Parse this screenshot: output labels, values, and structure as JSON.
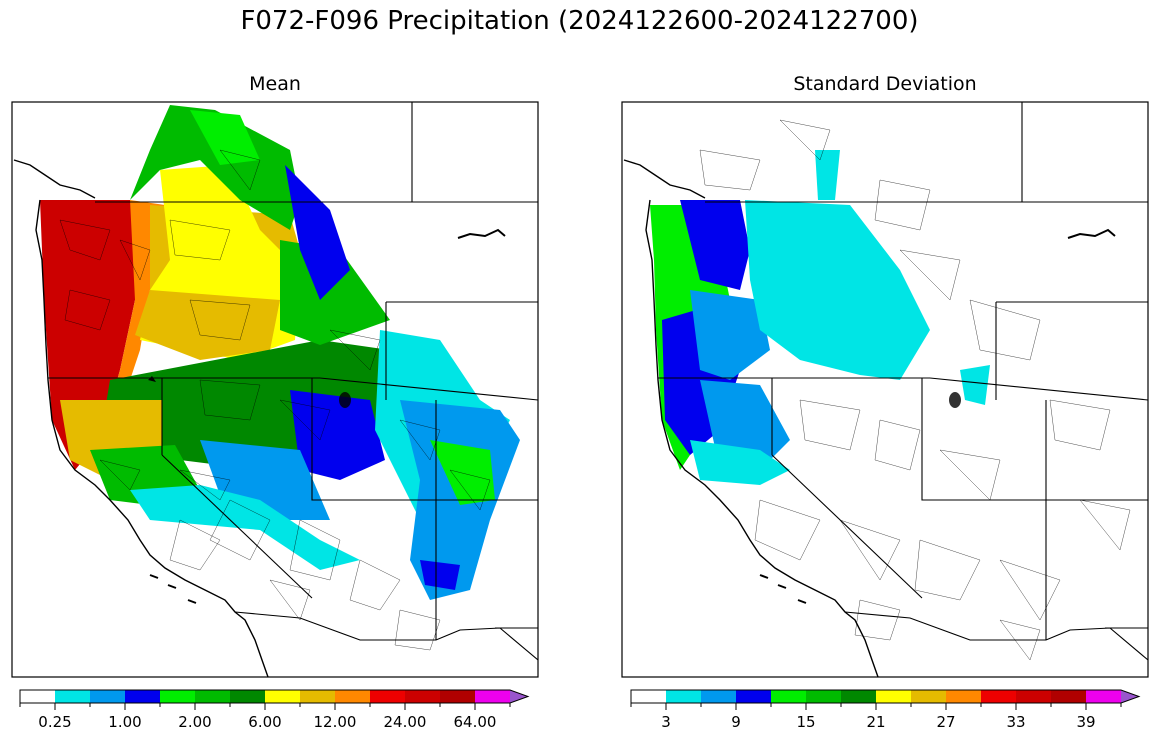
{
  "suptitle": "F072-F096 Precipitation (2024122600-2024122700)",
  "panels": [
    {
      "title": "Mean",
      "colorbar": {
        "colors": [
          "#ffffff",
          "#00e5e5",
          "#0099ee",
          "#0000ee",
          "#00ee00",
          "#00bb00",
          "#008800",
          "#ffff00",
          "#e5bb00",
          "#ff8800",
          "#ee0000",
          "#cc0000",
          "#b00000",
          "#ee00ee",
          "#9955cc"
        ],
        "tick_labels": [
          "0.25",
          "1.00",
          "2.00",
          "6.00",
          "12.00",
          "24.00",
          "64.00"
        ],
        "extend": "max"
      }
    },
    {
      "title": "Standard Deviation",
      "colorbar": {
        "colors": [
          "#ffffff",
          "#00e5e5",
          "#0099ee",
          "#0000ee",
          "#00ee00",
          "#00bb00",
          "#008800",
          "#ffff00",
          "#e5bb00",
          "#ff8800",
          "#ee0000",
          "#cc0000",
          "#b00000",
          "#ee00ee",
          "#9955cc"
        ],
        "tick_labels": [
          "3",
          "9",
          "15",
          "21",
          "27",
          "33",
          "39"
        ],
        "extend": "max"
      }
    }
  ],
  "legend_colors": {
    "white": "#ffffff",
    "cyan": "#00e5e5",
    "sky": "#0099ee",
    "blue": "#0000ee",
    "lime": "#00ee00",
    "green": "#00bb00",
    "dkgreen": "#008800",
    "yellow": "#ffff00",
    "gold": "#e5bb00",
    "orange": "#ff8800",
    "red": "#ee0000",
    "crimson": "#cc0000",
    "darkred": "#b00000",
    "magenta": "#ee00ee",
    "purple": "#9955cc"
  }
}
